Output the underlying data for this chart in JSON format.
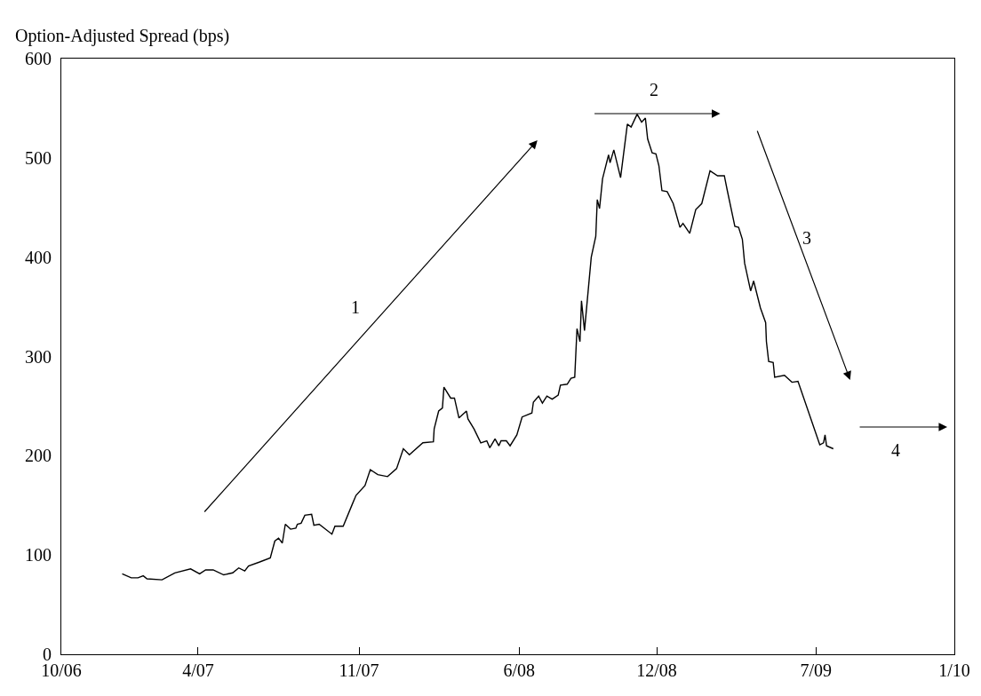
{
  "chart_data": {
    "type": "line",
    "ylabel": "Option-Adjusted Spread (bps)",
    "x": [
      "2006-12-21",
      "2007-01-02",
      "2007-01-11",
      "2007-01-18",
      "2007-01-23",
      "2007-02-12",
      "2007-03-01",
      "2007-03-22",
      "2007-04-03",
      "2007-04-11",
      "2007-04-21",
      "2007-05-05",
      "2007-05-17",
      "2007-05-25",
      "2007-06-02",
      "2007-06-07",
      "2007-06-22",
      "2007-07-06",
      "2007-07-12",
      "2007-07-17",
      "2007-07-22",
      "2007-07-26",
      "2007-08-02",
      "2007-08-09",
      "2007-08-11",
      "2007-08-16",
      "2007-08-21",
      "2007-08-30",
      "2007-09-02",
      "2007-09-09",
      "2007-09-26",
      "2007-09-30",
      "2007-10-11",
      "2007-10-23",
      "2007-10-28",
      "2007-11-09",
      "2007-11-16",
      "2007-11-26",
      "2007-12-09",
      "2007-12-21",
      "2007-12-30",
      "2008-01-07",
      "2008-01-25",
      "2008-02-08",
      "2008-02-09",
      "2008-02-15",
      "2008-02-20",
      "2008-02-22",
      "2008-03-02",
      "2008-03-07",
      "2008-03-13",
      "2008-03-23",
      "2008-03-25",
      "2008-04-02",
      "2008-04-11",
      "2008-04-19",
      "2008-04-23",
      "2008-04-30",
      "2008-05-05",
      "2008-05-08",
      "2008-05-15",
      "2008-05-20",
      "2008-05-29",
      "2008-06-05",
      "2008-06-18",
      "2008-06-20",
      "2008-06-27",
      "2008-07-02",
      "2008-07-08",
      "2008-07-15",
      "2008-07-23",
      "2008-07-26",
      "2008-08-04",
      "2008-08-09",
      "2008-08-14",
      "2008-08-17",
      "2008-08-21",
      "2008-08-23",
      "2008-08-27",
      "2008-09-05",
      "2008-09-11",
      "2008-09-13",
      "2008-09-16",
      "2008-09-20",
      "2008-09-28",
      "2008-09-30",
      "2008-10-05",
      "2008-10-14",
      "2008-10-23",
      "2008-10-28",
      "2008-11-05",
      "2008-11-11",
      "2008-11-16",
      "2008-11-19",
      "2008-11-25",
      "2008-11-30",
      "2008-12-04",
      "2008-12-08",
      "2008-12-15",
      "2008-12-23",
      "2009-01-01",
      "2009-01-05",
      "2009-01-14",
      "2009-01-22",
      "2009-01-30",
      "2009-02-10",
      "2009-02-20",
      "2009-03-01",
      "2009-03-05",
      "2009-03-15",
      "2009-03-20",
      "2009-03-25",
      "2009-03-28",
      "2009-04-05",
      "2009-04-09",
      "2009-04-18",
      "2009-04-25",
      "2009-04-26",
      "2009-04-29",
      "2009-05-05",
      "2009-05-07",
      "2009-05-20",
      "2009-05-30",
      "2009-06-07",
      "2009-07-06",
      "2009-07-11",
      "2009-07-13",
      "2009-07-15",
      "2009-07-24"
    ],
    "series": [
      {
        "color": "#000000",
        "values": [
          81,
          77,
          77,
          79,
          76,
          75,
          82,
          86,
          81,
          85,
          85,
          80,
          82,
          87,
          84,
          89,
          93,
          97,
          114,
          117,
          112,
          131,
          126,
          127,
          131,
          132,
          140,
          141,
          130,
          131,
          121,
          129,
          129,
          151,
          160,
          170,
          186,
          181,
          179,
          187,
          207,
          201,
          213,
          214,
          227,
          245,
          248,
          269,
          258,
          258,
          238,
          245,
          237,
          227,
          213,
          215,
          208,
          217,
          210,
          215,
          215,
          210,
          221,
          239,
          243,
          254,
          260,
          253,
          260,
          257,
          261,
          271,
          272,
          278,
          279,
          328,
          315,
          356,
          326,
          400,
          421,
          458,
          449,
          479,
          503,
          495,
          508,
          480,
          534,
          531,
          544,
          536,
          540,
          519,
          505,
          504,
          492,
          467,
          466,
          454,
          430,
          434,
          424,
          448,
          454,
          487,
          482,
          482,
          467,
          431,
          430,
          418,
          394,
          366,
          376,
          349,
          334,
          315,
          295,
          294,
          279,
          281,
          274,
          275,
          211,
          213,
          221,
          210,
          207
        ]
      }
    ],
    "xlim": [
      "2006-10",
      "2010-01"
    ],
    "xticks": [
      {
        "value": "2006-10",
        "label": "10/06"
      },
      {
        "value": "2007-04",
        "label": "4/07"
      },
      {
        "value": "2007-11",
        "label": "11/07"
      },
      {
        "value": "2008-06",
        "label": "6/08"
      },
      {
        "value": "2008-12",
        "label": "12/08"
      },
      {
        "value": "2009-07",
        "label": "7/09"
      },
      {
        "value": "2010-01",
        "label": "1/10"
      }
    ],
    "ylim": [
      0,
      600
    ],
    "yticks": [
      0,
      100,
      200,
      300,
      400,
      500,
      600
    ],
    "legend": false,
    "marker": "none",
    "line_style": "solid",
    "annotations": [
      "1",
      "2",
      "3",
      "4"
    ]
  }
}
